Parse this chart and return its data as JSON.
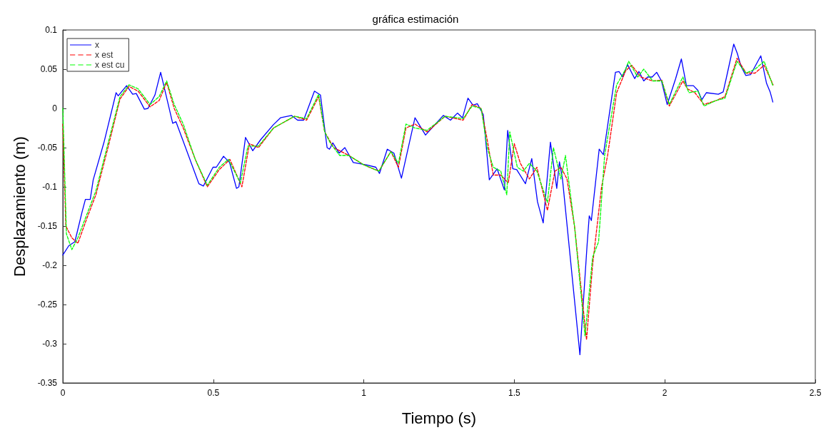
{
  "chart_data": {
    "type": "line",
    "title": "gráfica estimación",
    "xlabel": "Tiempo (s)",
    "ylabel": "Desplazamiento (m)",
    "xlim": [
      0,
      2.5
    ],
    "xticks": [
      0,
      0.5,
      1,
      1.5,
      2,
      2.5
    ],
    "ylim": [
      -0.35,
      0.1
    ],
    "yticks": [
      -0.35,
      -0.3,
      -0.25,
      -0.2,
      -0.15,
      -0.1,
      -0.05,
      0,
      0.05,
      0.1
    ],
    "grid": false,
    "legend": "top left",
    "marker": "none",
    "series": [
      {
        "name": "x",
        "color": "#0000ff",
        "line_style": "solid",
        "x": [
          0,
          0.02,
          0.04,
          0.064,
          0.075,
          0.091,
          0.101,
          0.137,
          0.177,
          0.184,
          0.212,
          0.232,
          0.244,
          0.271,
          0.283,
          0.306,
          0.325,
          0.365,
          0.376,
          0.452,
          0.467,
          0.499,
          0.51,
          0.534,
          0.554,
          0.577,
          0.585,
          0.607,
          0.631,
          0.657,
          0.699,
          0.723,
          0.76,
          0.78,
          0.8,
          0.836,
          0.856,
          0.878,
          0.886,
          0.897,
          0.918,
          0.937,
          0.965,
          1.008,
          1.04,
          1.052,
          1.078,
          1.1,
          1.125,
          1.17,
          1.205,
          1.264,
          1.288,
          1.311,
          1.328,
          1.346,
          1.363,
          1.377,
          1.397,
          1.417,
          1.443,
          1.467,
          1.478,
          1.495,
          1.508,
          1.537,
          1.558,
          1.577,
          1.596,
          1.62,
          1.641,
          1.65,
          1.66,
          1.718,
          1.742,
          1.749,
          1.756,
          1.782,
          1.796,
          1.836,
          1.848,
          1.86,
          1.876,
          1.9,
          1.914,
          1.93,
          1.943,
          1.958,
          1.973,
          1.989,
          2.008,
          2.036,
          2.055,
          2.072,
          2.095,
          2.11,
          2.123,
          2.138,
          2.178,
          2.194,
          2.208,
          2.229,
          2.241,
          2.253,
          2.269,
          2.285,
          2.319,
          2.338,
          2.35,
          2.359
        ],
        "values": [
          -0.187,
          -0.175,
          -0.17,
          -0.132,
          -0.116,
          -0.116,
          -0.091,
          -0.043,
          0.02,
          0.016,
          0.029,
          0.018,
          0.019,
          -0.001,
          0,
          0.017,
          0.046,
          -0.019,
          -0.017,
          -0.096,
          -0.099,
          -0.075,
          -0.075,
          -0.061,
          -0.069,
          -0.102,
          -0.1,
          -0.037,
          -0.054,
          -0.04,
          -0.021,
          -0.012,
          -0.009,
          -0.015,
          -0.015,
          0.022,
          0.017,
          -0.05,
          -0.052,
          -0.044,
          -0.057,
          -0.05,
          -0.069,
          -0.072,
          -0.075,
          -0.083,
          -0.052,
          -0.057,
          -0.089,
          -0.012,
          -0.034,
          -0.009,
          -0.015,
          -0.006,
          -0.012,
          0.013,
          0.004,
          0.006,
          -0.008,
          -0.091,
          -0.077,
          -0.104,
          -0.028,
          -0.077,
          -0.078,
          -0.096,
          -0.064,
          -0.119,
          -0.146,
          -0.043,
          -0.102,
          -0.068,
          -0.09,
          -0.314,
          -0.173,
          -0.137,
          -0.143,
          -0.052,
          -0.059,
          0.046,
          0.047,
          0.04,
          0.056,
          0.038,
          0.047,
          0.035,
          0.04,
          0.04,
          0.046,
          0.035,
          0.005,
          0.038,
          0.063,
          0.029,
          0.029,
          0.023,
          0.011,
          0.02,
          0.018,
          0.021,
          0.045,
          0.082,
          0.07,
          0.054,
          0.042,
          0.043,
          0.067,
          0.032,
          0.021,
          0.008
        ]
      },
      {
        "name": "x est",
        "color": "#ff0000",
        "line_style": "dashed",
        "x": [
          0,
          0.01,
          0.03,
          0.05,
          0.08,
          0.11,
          0.15,
          0.19,
          0.22,
          0.25,
          0.29,
          0.32,
          0.345,
          0.37,
          0.4,
          0.44,
          0.48,
          0.52,
          0.555,
          0.595,
          0.62,
          0.65,
          0.7,
          0.77,
          0.81,
          0.85,
          0.87,
          0.9,
          0.95,
          1,
          1.05,
          1.09,
          1.115,
          1.14,
          1.17,
          1.21,
          1.27,
          1.33,
          1.36,
          1.39,
          1.41,
          1.43,
          1.455,
          1.48,
          1.5,
          1.52,
          1.55,
          1.575,
          1.61,
          1.635,
          1.655,
          1.675,
          1.7,
          1.74,
          1.76,
          1.79,
          1.81,
          1.84,
          1.87,
          1.89,
          1.92,
          1.96,
          1.99,
          2.015,
          2.06,
          2.075,
          2.1,
          2.13,
          2.17,
          2.2,
          2.24,
          2.27,
          2.3,
          2.33,
          2.36
        ],
        "values": [
          -0.02,
          -0.15,
          -0.165,
          -0.172,
          -0.14,
          -0.11,
          -0.05,
          0.012,
          0.028,
          0.022,
          0.002,
          0.01,
          0.033,
          0,
          -0.025,
          -0.065,
          -0.1,
          -0.078,
          -0.065,
          -0.1,
          -0.045,
          -0.05,
          -0.025,
          -0.01,
          -0.015,
          0.015,
          -0.03,
          -0.05,
          -0.06,
          -0.072,
          -0.08,
          -0.055,
          -0.075,
          -0.025,
          -0.02,
          -0.03,
          -0.01,
          -0.015,
          0.005,
          0,
          -0.04,
          -0.085,
          -0.085,
          -0.095,
          -0.045,
          -0.07,
          -0.09,
          -0.075,
          -0.13,
          -0.08,
          -0.075,
          -0.09,
          -0.15,
          -0.295,
          -0.2,
          -0.1,
          -0.06,
          0.02,
          0.048,
          0.055,
          0.04,
          0.035,
          0.036,
          0.003,
          0.035,
          0.025,
          0.02,
          0.005,
          0.01,
          0.015,
          0.064,
          0.045,
          0.045,
          0.055,
          0.03
        ]
      },
      {
        "name": "x est cu",
        "color": "#00ff00",
        "line_style": "dashed",
        "x": [
          0,
          0.012,
          0.03,
          0.05,
          0.08,
          0.11,
          0.15,
          0.19,
          0.22,
          0.25,
          0.29,
          0.32,
          0.345,
          0.37,
          0.4,
          0.44,
          0.48,
          0.52,
          0.55,
          0.59,
          0.615,
          0.65,
          0.7,
          0.77,
          0.81,
          0.85,
          0.87,
          0.89,
          0.92,
          0.95,
          1,
          1.05,
          1.09,
          1.115,
          1.14,
          1.17,
          1.21,
          1.27,
          1.33,
          1.36,
          1.39,
          1.41,
          1.43,
          1.455,
          1.475,
          1.485,
          1.51,
          1.53,
          1.55,
          1.575,
          1.61,
          1.63,
          1.655,
          1.67,
          1.7,
          1.735,
          1.76,
          1.78,
          1.8,
          1.84,
          1.87,
          1.88,
          1.91,
          1.93,
          1.96,
          1.99,
          2.015,
          2.06,
          2.08,
          2.11,
          2.13,
          2.17,
          2.2,
          2.24,
          2.27,
          2.3,
          2.33,
          2.36
        ],
        "values": [
          0,
          -0.16,
          -0.18,
          -0.165,
          -0.135,
          -0.105,
          -0.045,
          0.015,
          0.03,
          0.025,
          0.005,
          0.015,
          0.035,
          0.005,
          -0.02,
          -0.065,
          -0.098,
          -0.075,
          -0.065,
          -0.095,
          -0.048,
          -0.048,
          -0.025,
          -0.01,
          -0.013,
          0.018,
          -0.03,
          -0.045,
          -0.06,
          -0.06,
          -0.072,
          -0.08,
          -0.055,
          -0.07,
          -0.02,
          -0.025,
          -0.028,
          -0.01,
          -0.013,
          0.003,
          0,
          -0.05,
          -0.075,
          -0.08,
          -0.11,
          -0.03,
          -0.075,
          -0.08,
          -0.07,
          -0.08,
          -0.12,
          -0.05,
          -0.09,
          -0.06,
          -0.15,
          -0.29,
          -0.19,
          -0.17,
          -0.06,
          0.03,
          0.05,
          0.06,
          0.04,
          0.05,
          0.035,
          0.035,
          0.005,
          0.04,
          0.02,
          0.022,
          0.003,
          0.01,
          0.013,
          0.06,
          0.045,
          0.05,
          0.06,
          0.028
        ]
      }
    ]
  }
}
